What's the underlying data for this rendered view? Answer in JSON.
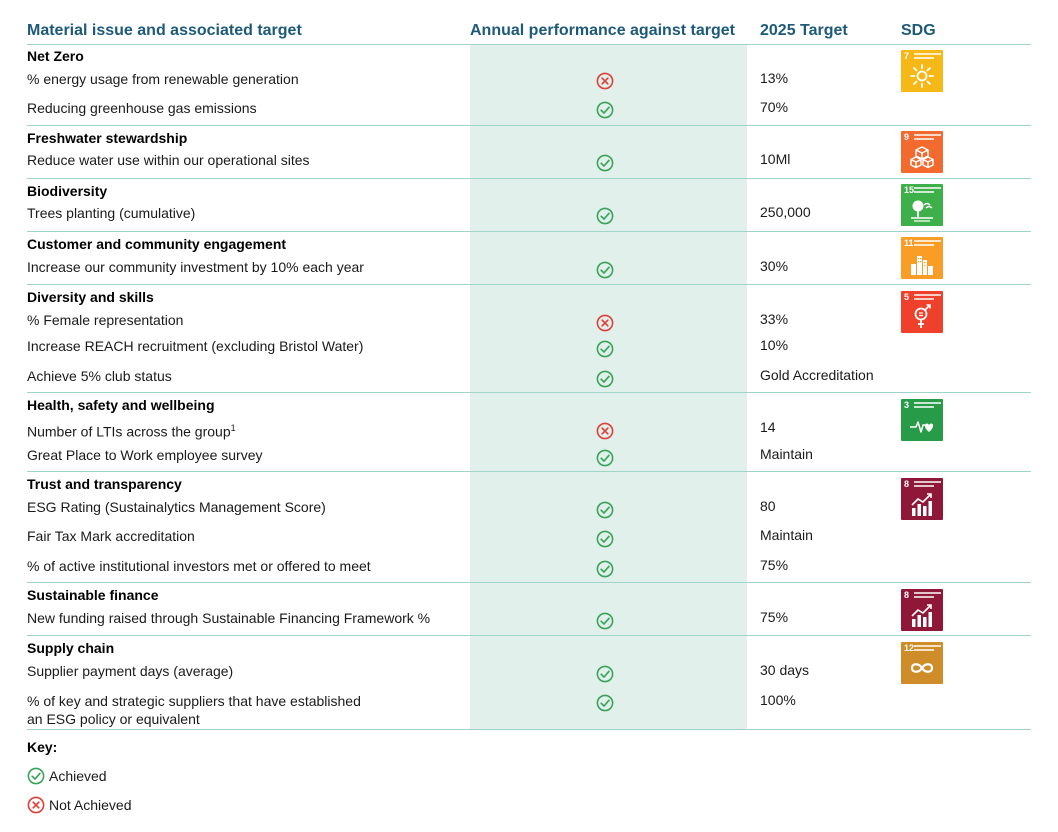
{
  "headers": {
    "material": "Material issue and associated target",
    "performance": "Annual performance against target",
    "target": "2025 Target",
    "sdg": "SDG"
  },
  "sections": {
    "net_zero": {
      "title": "Net Zero",
      "sdg": {
        "number": "7",
        "color": "#f6b817",
        "icon": "sun-icon"
      },
      "rows": [
        {
          "text": "% energy usage from renewable generation",
          "status": "not_achieved",
          "target": "13%"
        },
        {
          "text": "Reducing greenhouse gas emissions",
          "status": "achieved",
          "target": "70%"
        }
      ]
    },
    "freshwater": {
      "title": "Freshwater stewardship",
      "sdg": {
        "number": "9",
        "color": "#f26a2e",
        "icon": "cubes-icon"
      },
      "rows": [
        {
          "text": "Reduce water use within our operational sites",
          "status": "achieved",
          "target": "10Ml"
        }
      ]
    },
    "biodiversity": {
      "title": "Biodiversity",
      "sdg": {
        "number": "15",
        "color": "#3eb049",
        "icon": "tree-icon"
      },
      "rows": [
        {
          "text": "Trees planting (cumulative)",
          "status": "achieved",
          "target": "250,000"
        }
      ]
    },
    "customer": {
      "title": "Customer and community engagement",
      "sdg": {
        "number": "11",
        "color": "#f99d26",
        "icon": "city-icon"
      },
      "rows": [
        {
          "text": "Increase our community investment by 10% each year",
          "status": "achieved",
          "target": "30%"
        }
      ]
    },
    "diversity": {
      "title": "Diversity and skills",
      "sdg": {
        "number": "5",
        "color": "#ef402b",
        "icon": "gender-equality-icon"
      },
      "rows": [
        {
          "text": "% Female representation",
          "status": "not_achieved",
          "target": "33%"
        },
        {
          "text": "Increase REACH recruitment (excluding Bristol Water)",
          "status": "achieved",
          "target": "10%"
        },
        {
          "text": "Achieve 5% club status",
          "status": "achieved",
          "target": "Gold Accreditation"
        }
      ]
    },
    "health": {
      "title": "Health, safety and wellbeing",
      "sdg": {
        "number": "3",
        "color": "#279b48",
        "icon": "heartbeat-icon"
      },
      "rows": [
        {
          "text": "Number of LTIs across the group",
          "superscript": "1",
          "status": "not_achieved",
          "target": "14"
        },
        {
          "text": "Great Place to Work employee survey",
          "status": "achieved",
          "target": "Maintain"
        }
      ]
    },
    "trust": {
      "title": "Trust and transparency",
      "sdg": {
        "number": "8",
        "color": "#8f1838",
        "icon": "growth-chart-icon"
      },
      "rows": [
        {
          "text": "ESG Rating (Sustainalytics Management Score)",
          "status": "achieved",
          "target": "80"
        },
        {
          "text": "Fair Tax Mark accreditation",
          "status": "achieved",
          "target": "Maintain"
        },
        {
          "text": "% of active institutional investors met or offered to meet",
          "status": "achieved",
          "target": "75%"
        }
      ]
    },
    "finance": {
      "title": "Sustainable finance",
      "sdg": {
        "number": "8",
        "color": "#8f1838",
        "icon": "growth-chart-icon"
      },
      "rows": [
        {
          "text": "New funding raised through Sustainable Financing Framework %",
          "status": "achieved",
          "target": "75%"
        }
      ]
    },
    "supply": {
      "title": "Supply chain",
      "sdg": {
        "number": "12",
        "color": "#cf8d2a",
        "icon": "infinity-icon"
      },
      "rows": [
        {
          "text": "Supplier payment days (average)",
          "status": "achieved",
          "target": "30 days"
        },
        {
          "text_line1": "% of key and strategic suppliers that have established",
          "text_line2": "an ESG policy or equivalent",
          "status": "achieved",
          "target": "100%"
        }
      ]
    }
  },
  "key": {
    "title": "Key:",
    "achieved": "Achieved",
    "not_achieved": "Not Achieved"
  },
  "colors": {
    "header_text": "#1d5a7a",
    "rule": "#9fd4c8",
    "column_shade": "#e1f0eb",
    "achieved": "#3aa35a",
    "not_achieved": "#e0403a"
  }
}
